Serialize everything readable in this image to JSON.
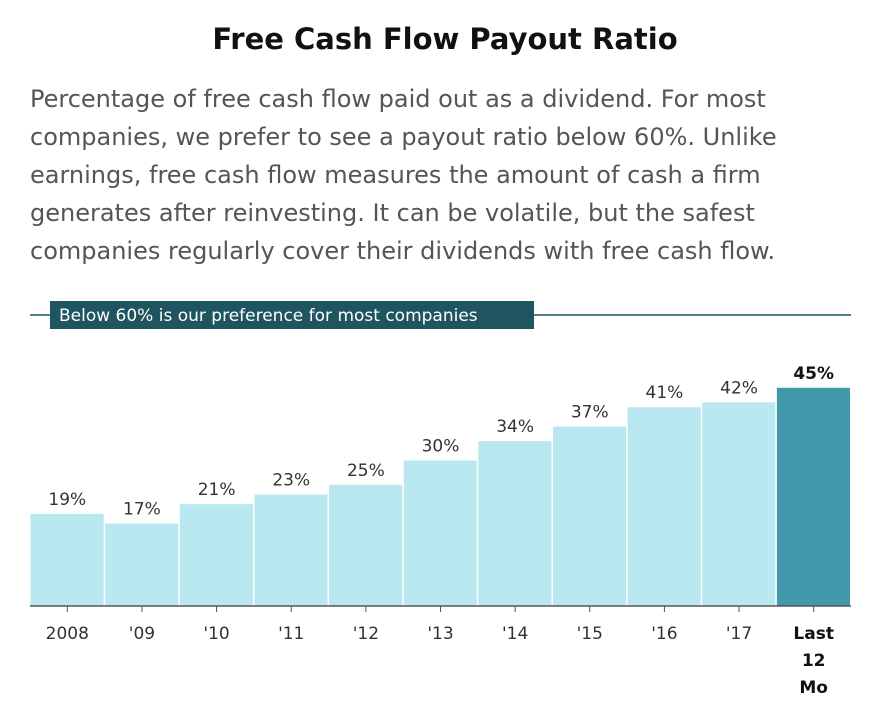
{
  "title": "Free Cash Flow Payout Ratio",
  "subtitle": "Percentage of free cash flow paid out as a dividend. For most companies, we prefer to see a payout ratio below 60%. Unlike earnings, free cash flow measures the amount of cash a firm generates after reinvesting. It can be volatile, but the safest companies regularly cover their dividends with free cash flow.",
  "colors": {
    "bar": "#b9e8f0",
    "bar_highlight": "#4299ab",
    "reference_line": "#1e5560",
    "axis": "#555555"
  },
  "chart_data": {
    "type": "bar",
    "title": "Free Cash Flow Payout Ratio",
    "categories": [
      "2008",
      "'09",
      "'10",
      "'11",
      "'12",
      "'13",
      "'14",
      "'15",
      "'16",
      "'17",
      "Last 12 Mo"
    ],
    "category_lines": [
      [
        "2008"
      ],
      [
        "'09"
      ],
      [
        "'10"
      ],
      [
        "'11"
      ],
      [
        "'12"
      ],
      [
        "'13"
      ],
      [
        "'14"
      ],
      [
        "'15"
      ],
      [
        "'16"
      ],
      [
        "'17"
      ],
      [
        "Last",
        "12",
        "Mo"
      ]
    ],
    "values": [
      19,
      17,
      21,
      23,
      25,
      30,
      34,
      37,
      41,
      42,
      45
    ],
    "value_labels": [
      "19%",
      "17%",
      "21%",
      "23%",
      "25%",
      "30%",
      "34%",
      "37%",
      "41%",
      "42%",
      "45%"
    ],
    "highlight_index": 10,
    "ylim": [
      0,
      60
    ],
    "reference_line": {
      "value": 60,
      "label": "Below 60% is our preference for most companies"
    },
    "xlabel": "",
    "ylabel": "",
    "grid": false
  }
}
